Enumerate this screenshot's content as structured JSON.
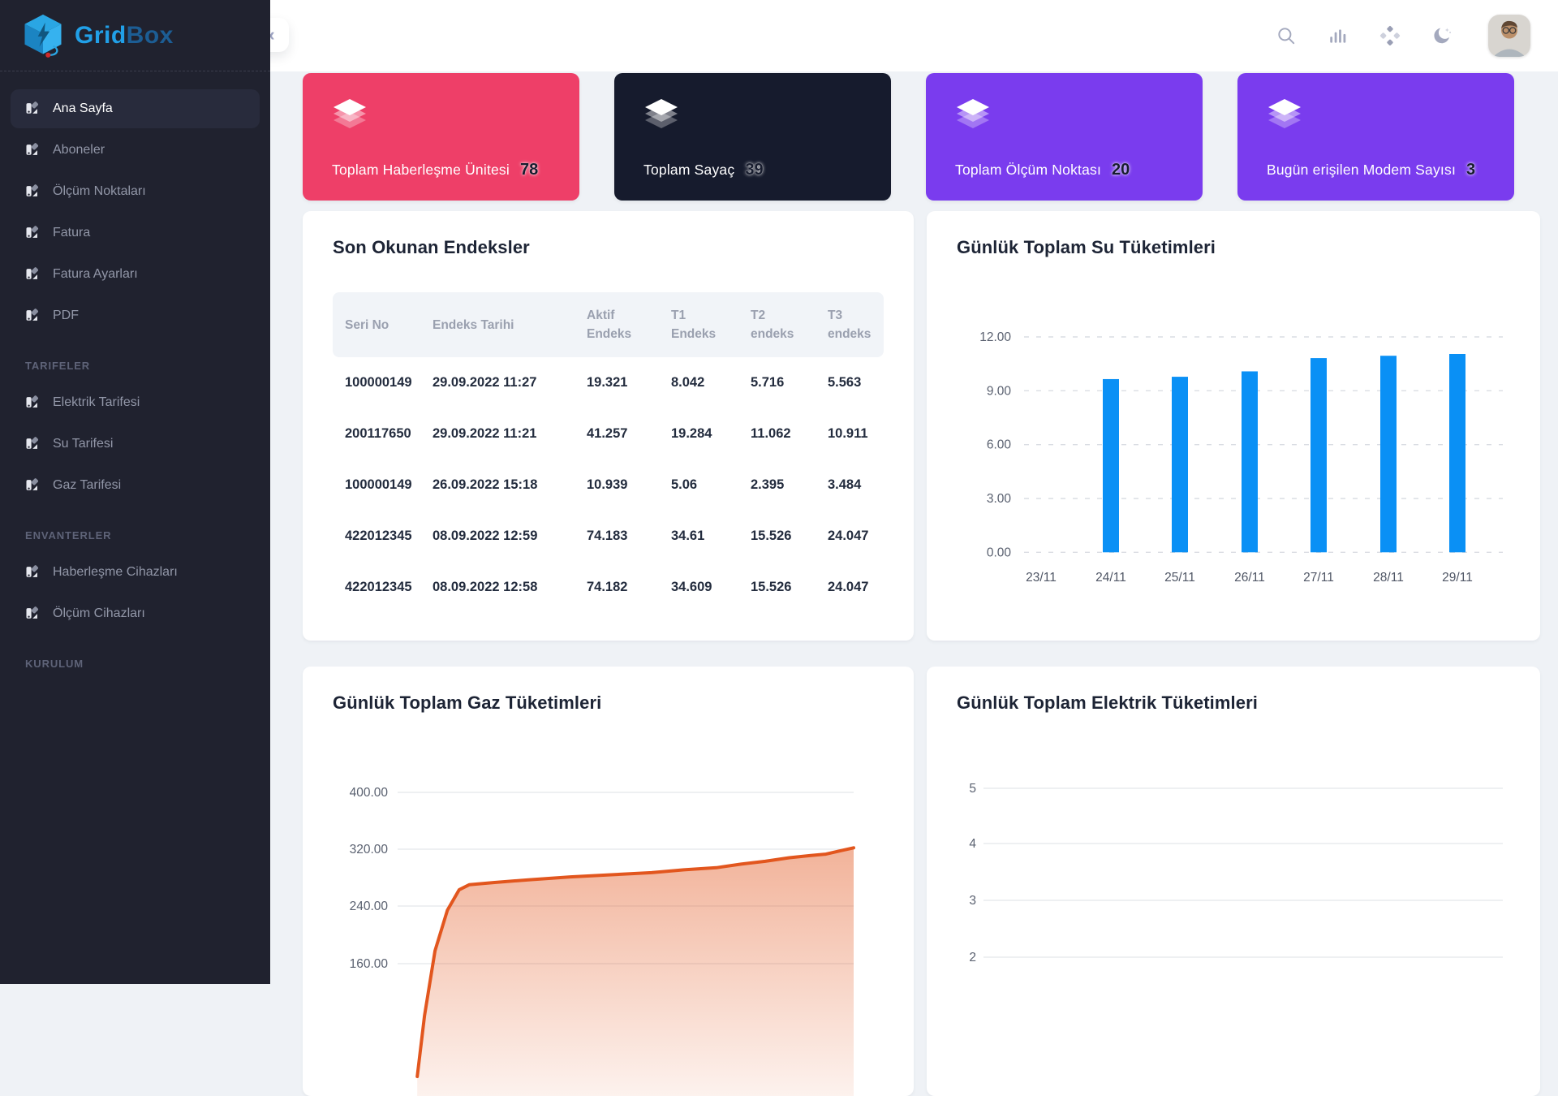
{
  "brand": {
    "grid": "Grid",
    "box": "Box"
  },
  "sidebar": {
    "active_item": "Ana Sayfa",
    "sections": [
      {
        "heading": "",
        "items": [
          "Ana Sayfa",
          "Aboneler",
          "Ölçüm Noktaları",
          "Fatura",
          "Fatura Ayarları",
          "PDF"
        ]
      },
      {
        "heading": "TARIFELER",
        "items": [
          "Elektrik Tarifesi",
          "Su Tarifesi",
          "Gaz Tarifesi"
        ]
      },
      {
        "heading": "ENVANTERLER",
        "items": [
          "Haberleşme Cihazları",
          "Ölçüm Cihazları"
        ]
      },
      {
        "heading": "KURULUM",
        "items": []
      }
    ]
  },
  "header": {
    "collapse_glyph": "«",
    "icons": [
      "search-icon",
      "bar-chart-icon",
      "apps-icon",
      "dark-mode-icon"
    ],
    "avatar": "profile-photo"
  },
  "stats": [
    {
      "label": "Toplam Haberleşme Ünitesi",
      "value": "78",
      "bg": "#ee3f68",
      "icon": "layers-icon"
    },
    {
      "label": "Toplam Sayaç",
      "value": "39",
      "bg": "#161b2d",
      "icon": "layers-icon"
    },
    {
      "label": "Toplam Ölçüm Noktası",
      "value": "20",
      "bg": "#7a3cee",
      "icon": "layers-icon"
    },
    {
      "label": "Bugün erişilen Modem Sayısı",
      "value": "3",
      "bg": "#7a3cee",
      "icon": "layers-icon"
    }
  ],
  "table": {
    "title": "Son Okunan Endeksler",
    "columns": [
      [
        "Seri No"
      ],
      [
        "Endeks Tarihi"
      ],
      [
        "Aktif",
        "Endeks"
      ],
      [
        "T1",
        "Endeks"
      ],
      [
        "T2",
        "endeks"
      ],
      [
        "T3",
        "endeks"
      ]
    ],
    "rows": [
      [
        "100000149",
        "29.09.2022 11:27",
        "19.321",
        "8.042",
        "5.716",
        "5.563"
      ],
      [
        "200117650",
        "29.09.2022 11:21",
        "41.257",
        "19.284",
        "11.062",
        "10.911"
      ],
      [
        "100000149",
        "26.09.2022 15:18",
        "10.939",
        "5.06",
        "2.395",
        "3.484"
      ],
      [
        "422012345",
        "08.09.2022 12:59",
        "74.183",
        "34.61",
        "15.526",
        "24.047"
      ],
      [
        "422012345",
        "08.09.2022 12:58",
        "74.182",
        "34.609",
        "15.526",
        "24.047"
      ]
    ]
  },
  "chart_data": [
    {
      "type": "bar",
      "title": "Günlük Toplam Su Tüketimleri",
      "categories": [
        "23/11",
        "24/11",
        "25/11",
        "26/11",
        "27/11",
        "28/11",
        "29/11"
      ],
      "values": [
        0,
        9.65,
        9.78,
        10.08,
        10.82,
        10.95,
        11.05
      ],
      "y_ticks": [
        "12.00",
        "9.00",
        "6.00",
        "3.00",
        "0.00"
      ],
      "ylim": [
        0,
        12
      ],
      "grid": "dashed",
      "bar_color": "#0a90f5",
      "xlabel": "",
      "ylabel": "",
      "legend": "none"
    },
    {
      "type": "area",
      "title": "Günlük Toplam Gaz Tüketimleri",
      "y_ticks_visible": [
        "400.00",
        "320.00",
        "240.00",
        "160.00"
      ],
      "ylim": [
        0,
        400
      ],
      "grid": "solid",
      "line_color": "#e2561e",
      "points_xfrac_value": [
        [
          0.043,
          0
        ],
        [
          0.059,
          86
        ],
        [
          0.082,
          177
        ],
        [
          0.109,
          234
        ],
        [
          0.135,
          263
        ],
        [
          0.157,
          270
        ],
        [
          0.21,
          273
        ],
        [
          0.29,
          277
        ],
        [
          0.379,
          281
        ],
        [
          0.468,
          284
        ],
        [
          0.557,
          287
        ],
        [
          0.628,
          291
        ],
        [
          0.699,
          294
        ],
        [
          0.753,
          299
        ],
        [
          0.806,
          303
        ],
        [
          0.859,
          308
        ],
        [
          0.904,
          311
        ],
        [
          0.939,
          313
        ],
        [
          0.966,
          317
        ],
        [
          1,
          322
        ]
      ],
      "xlabel": "",
      "ylabel": "",
      "legend": "none"
    },
    {
      "type": "line",
      "title": "Günlük Toplam Elektrik Tüketimleri",
      "y_ticks_visible": [
        "5",
        "4",
        "3",
        "2"
      ],
      "grid": "solid",
      "values_visible": [],
      "xlabel": "",
      "ylabel": "",
      "legend": "none"
    }
  ]
}
